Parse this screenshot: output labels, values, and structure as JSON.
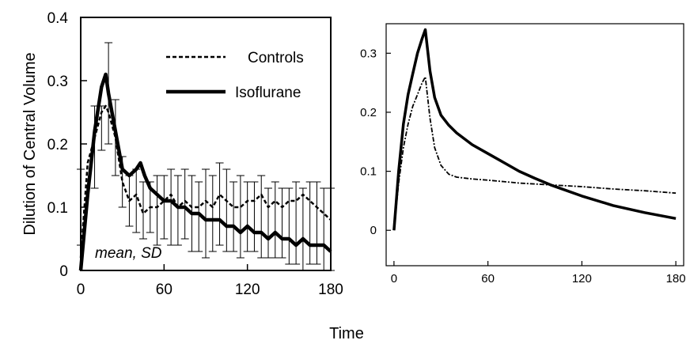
{
  "chart_data": [
    {
      "type": "line",
      "panel": "left",
      "xlabel": "Time",
      "ylabel": "Dilution of Central Volume",
      "xlim": [
        0,
        180
      ],
      "ylim": [
        0,
        0.4
      ],
      "x_ticks": [
        "0",
        "60",
        "120",
        "180"
      ],
      "y_ticks": [
        "0",
        "0.1",
        "0.2",
        "0.3",
        "0.4"
      ],
      "legend_position": "top-right",
      "annotation": "mean, SD",
      "series": [
        {
          "name": "Controls",
          "style": "dashed",
          "x": [
            0,
            5,
            10,
            15,
            18,
            20,
            25,
            30,
            35,
            40,
            45,
            50,
            55,
            60,
            65,
            70,
            75,
            80,
            85,
            90,
            95,
            100,
            105,
            110,
            115,
            120,
            125,
            130,
            135,
            140,
            145,
            150,
            155,
            160,
            165,
            170,
            175,
            180
          ],
          "values": [
            0.02,
            0.17,
            0.21,
            0.25,
            0.26,
            0.25,
            0.21,
            0.14,
            0.11,
            0.12,
            0.09,
            0.1,
            0.1,
            0.11,
            0.12,
            0.1,
            0.11,
            0.1,
            0.1,
            0.11,
            0.1,
            0.12,
            0.11,
            0.1,
            0.1,
            0.11,
            0.11,
            0.12,
            0.1,
            0.11,
            0.1,
            0.11,
            0.11,
            0.12,
            0.11,
            0.1,
            0.09,
            0.08
          ]
        },
        {
          "name": "Isoflurane",
          "style": "solid",
          "x": [
            0,
            5,
            10,
            15,
            18,
            20,
            25,
            30,
            35,
            40,
            43,
            46,
            50,
            55,
            60,
            65,
            70,
            75,
            80,
            85,
            90,
            95,
            100,
            105,
            110,
            115,
            120,
            125,
            130,
            135,
            140,
            145,
            150,
            155,
            160,
            165,
            170,
            175,
            180
          ],
          "values": [
            0.0,
            0.12,
            0.22,
            0.29,
            0.31,
            0.28,
            0.22,
            0.16,
            0.15,
            0.16,
            0.17,
            0.15,
            0.13,
            0.12,
            0.11,
            0.11,
            0.1,
            0.1,
            0.09,
            0.09,
            0.08,
            0.08,
            0.08,
            0.07,
            0.07,
            0.06,
            0.07,
            0.06,
            0.06,
            0.05,
            0.06,
            0.05,
            0.05,
            0.04,
            0.05,
            0.04,
            0.04,
            0.04,
            0.03
          ]
        }
      ],
      "error_bars": [
        {
          "x": 0,
          "low": 0.04,
          "high": 0.16
        },
        {
          "x": 10,
          "low": 0.13,
          "high": 0.26
        },
        {
          "x": 15,
          "low": 0.19,
          "high": 0.26
        },
        {
          "x": 20,
          "low": 0.2,
          "high": 0.36
        },
        {
          "x": 25,
          "low": 0.15,
          "high": 0.27
        },
        {
          "x": 30,
          "low": 0.1,
          "high": 0.18
        },
        {
          "x": 35,
          "low": 0.07,
          "high": 0.15
        },
        {
          "x": 40,
          "low": 0.06,
          "high": 0.16
        },
        {
          "x": 45,
          "low": 0.05,
          "high": 0.14
        },
        {
          "x": 50,
          "low": 0.06,
          "high": 0.14
        },
        {
          "x": 55,
          "low": 0.04,
          "high": 0.15
        },
        {
          "x": 60,
          "low": 0.05,
          "high": 0.15
        },
        {
          "x": 65,
          "low": 0.04,
          "high": 0.16
        },
        {
          "x": 70,
          "low": 0.04,
          "high": 0.15
        },
        {
          "x": 75,
          "low": 0.05,
          "high": 0.16
        },
        {
          "x": 80,
          "low": 0.03,
          "high": 0.15
        },
        {
          "x": 85,
          "low": 0.03,
          "high": 0.14
        },
        {
          "x": 90,
          "low": 0.02,
          "high": 0.16
        },
        {
          "x": 95,
          "low": 0.03,
          "high": 0.15
        },
        {
          "x": 100,
          "low": 0.04,
          "high": 0.17
        },
        {
          "x": 105,
          "low": 0.03,
          "high": 0.16
        },
        {
          "x": 110,
          "low": 0.03,
          "high": 0.14
        },
        {
          "x": 115,
          "low": 0.02,
          "high": 0.15
        },
        {
          "x": 120,
          "low": 0.03,
          "high": 0.14
        },
        {
          "x": 125,
          "low": 0.03,
          "high": 0.14
        },
        {
          "x": 130,
          "low": 0.02,
          "high": 0.15
        },
        {
          "x": 135,
          "low": 0.02,
          "high": 0.13
        },
        {
          "x": 140,
          "low": 0.02,
          "high": 0.14
        },
        {
          "x": 145,
          "low": 0.02,
          "high": 0.13
        },
        {
          "x": 150,
          "low": 0.01,
          "high": 0.13
        },
        {
          "x": 155,
          "low": 0.01,
          "high": 0.14
        },
        {
          "x": 160,
          "low": 0.0,
          "high": 0.13
        },
        {
          "x": 165,
          "low": 0.01,
          "high": 0.14
        },
        {
          "x": 170,
          "low": 0.01,
          "high": 0.14
        },
        {
          "x": 175,
          "low": 0.0,
          "high": 0.13
        },
        {
          "x": 180,
          "low": 0.0,
          "high": 0.13
        }
      ]
    },
    {
      "type": "line",
      "panel": "right",
      "xlim": [
        -5,
        185
      ],
      "ylim": [
        -0.06,
        0.35
      ],
      "x_ticks": [
        "0",
        "60",
        "120",
        "180"
      ],
      "y_ticks": [
        "0",
        "0.1",
        "0.2",
        "0.3"
      ],
      "series": [
        {
          "style": "dash-dot",
          "x": [
            0,
            3,
            6,
            9,
            12,
            15,
            18,
            20,
            23,
            26,
            30,
            35,
            40,
            50,
            60,
            80,
            100,
            120,
            140,
            160,
            180
          ],
          "values": [
            0.0,
            0.08,
            0.14,
            0.18,
            0.21,
            0.23,
            0.25,
            0.26,
            0.19,
            0.14,
            0.11,
            0.095,
            0.09,
            0.087,
            0.085,
            0.08,
            0.077,
            0.074,
            0.07,
            0.067,
            0.063
          ]
        },
        {
          "style": "solid",
          "x": [
            0,
            3,
            6,
            9,
            12,
            15,
            18,
            20,
            23,
            26,
            30,
            35,
            40,
            50,
            60,
            70,
            80,
            90,
            100,
            120,
            140,
            160,
            180
          ],
          "values": [
            0.0,
            0.1,
            0.18,
            0.23,
            0.265,
            0.3,
            0.325,
            0.34,
            0.27,
            0.225,
            0.195,
            0.178,
            0.165,
            0.145,
            0.13,
            0.115,
            0.1,
            0.088,
            0.077,
            0.058,
            0.042,
            0.03,
            0.02
          ]
        }
      ]
    }
  ]
}
